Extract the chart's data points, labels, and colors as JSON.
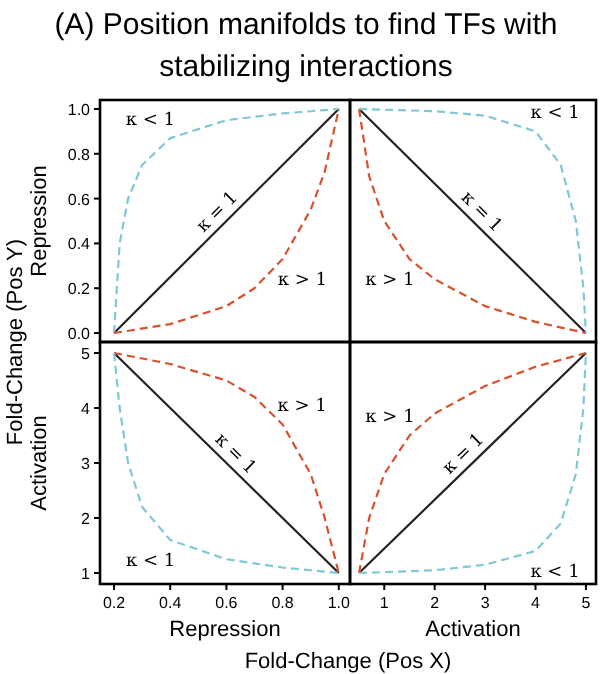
{
  "chart_data": [
    {
      "type": "line",
      "title": "(A) Position manifolds to find TFs with stabilizing interactions",
      "ylabel": "Repression",
      "xlim": [
        0.15,
        1.04
      ],
      "ylim": [
        -0.04,
        1.04
      ],
      "yticks": [
        {
          "value": 0,
          "label": "0.0"
        },
        0.2,
        0.4,
        0.6,
        0.8,
        {
          "value": 1,
          "label": "1.0"
        }
      ],
      "tick_labels": "y",
      "grid": false,
      "series": [
        {
          "color": "#222222",
          "line_style": "solid",
          "x": [
            0.2,
            1
          ],
          "values": [
            0,
            1
          ]
        },
        {
          "color": "#7ec8d8",
          "line_style": "dashed",
          "x": [
            0.2,
            0.22,
            0.25,
            0.3,
            0.4,
            0.6,
            0.8,
            1
          ],
          "values": [
            0,
            0.4,
            0.6,
            0.75,
            0.87,
            0.95,
            0.98,
            1
          ]
        },
        {
          "color": "#d9512c",
          "line_style": "dashed",
          "x": [
            0.2,
            0.4,
            0.6,
            0.7,
            0.8,
            0.9,
            0.95,
            1
          ],
          "values": [
            0,
            0.04,
            0.12,
            0.2,
            0.33,
            0.55,
            0.72,
            1
          ]
        }
      ],
      "annotations": [
        "Fold-Change (Pos Y)",
        {
          "text": "κ < 1",
          "x": 0.4,
          "y": 0.87
        },
        {
          "text": "κ = 1",
          "x": 0.6,
          "y": 0.5
        },
        {
          "text": "κ > 1",
          "x": 0.8,
          "y": 0.33
        }
      ]
    },
    {
      "type": "line",
      "xlim": [
        0.32,
        5.2
      ],
      "ylim": [
        -0.04,
        1.04
      ],
      "tick_labels": false,
      "grid": false,
      "series": [
        {
          "color": "#222222",
          "line_style": "solid",
          "x": [
            0.5,
            5
          ],
          "values": [
            1,
            0
          ]
        },
        {
          "color": "#d9512c",
          "line_style": "dashed",
          "x": [
            0.5,
            0.7,
            1,
            1.5,
            2,
            3,
            4,
            5
          ],
          "values": [
            1,
            0.7,
            0.5,
            0.33,
            0.24,
            0.12,
            0.05,
            0
          ]
        },
        {
          "color": "#7ec8d8",
          "line_style": "dashed",
          "x": [
            0.5,
            2,
            3,
            4,
            4.5,
            4.8,
            4.95,
            5
          ],
          "values": [
            1,
            0.99,
            0.97,
            0.9,
            0.75,
            0.5,
            0.2,
            0
          ]
        }
      ],
      "annotations": [
        {
          "text": "κ < 1",
          "x": 4,
          "y": 0.9
        },
        {
          "text": "κ = 1",
          "x": 2.75,
          "y": 0.5
        },
        {
          "text": "κ > 1",
          "x": 1.5,
          "y": 0.33
        }
      ]
    },
    {
      "type": "line",
      "xlabel": "Repression",
      "ylabel": "Activation",
      "xlim": [
        0.15,
        1.04
      ],
      "ylim": [
        0.8,
        5.2
      ],
      "xticks": [
        0.2,
        0.4,
        0.6,
        0.8,
        {
          "value": 1,
          "label": "1.0"
        }
      ],
      "yticks": [
        1,
        2,
        3,
        4,
        5
      ],
      "grid": false,
      "series": [
        {
          "color": "#222222",
          "line_style": "solid",
          "x": [
            0.2,
            1
          ],
          "values": [
            5,
            1
          ]
        },
        {
          "color": "#d9512c",
          "line_style": "dashed",
          "x": [
            0.2,
            0.4,
            0.6,
            0.7,
            0.8,
            0.9,
            0.95,
            1
          ],
          "values": [
            5,
            4.8,
            4.5,
            4.2,
            3.7,
            2.8,
            2,
            1
          ]
        },
        {
          "color": "#7ec8d8",
          "line_style": "dashed",
          "x": [
            0.2,
            0.22,
            0.25,
            0.3,
            0.4,
            0.6,
            0.8,
            1
          ],
          "values": [
            5,
            4,
            3,
            2.2,
            1.6,
            1.25,
            1.1,
            1
          ]
        }
      ],
      "annotations": [
        {
          "text": "κ > 1",
          "x": 0.8,
          "y": 3.7
        },
        {
          "text": "κ = 1",
          "x": 0.6,
          "y": 3
        },
        {
          "text": "κ < 1",
          "x": 0.4,
          "y": 1.6
        }
      ]
    },
    {
      "type": "line",
      "xlabel": "Activation",
      "xlim": [
        0.32,
        5.2
      ],
      "ylim": [
        0.8,
        5.2
      ],
      "xticks": [
        1,
        2,
        3,
        4,
        5
      ],
      "tick_labels": "x",
      "grid": false,
      "series": [
        {
          "color": "#222222",
          "line_style": "solid",
          "x": [
            0.5,
            5
          ],
          "values": [
            1,
            5
          ]
        },
        {
          "color": "#d9512c",
          "line_style": "dashed",
          "x": [
            0.5,
            0.7,
            1,
            1.5,
            2,
            3,
            4,
            5
          ],
          "values": [
            1,
            2,
            2.8,
            3.5,
            3.9,
            4.4,
            4.75,
            5
          ]
        },
        {
          "color": "#7ec8d8",
          "line_style": "dashed",
          "x": [
            0.5,
            2,
            3,
            4,
            4.5,
            4.8,
            4.95,
            5
          ],
          "values": [
            1,
            1.05,
            1.15,
            1.4,
            1.9,
            2.8,
            4,
            5
          ]
        }
      ],
      "annotations": [
        "Fold-Change (Pos X)",
        {
          "text": "κ > 1",
          "x": 1.5,
          "y": 3.5
        },
        {
          "text": "κ = 1",
          "x": 2.75,
          "y": 3
        },
        {
          "text": "κ < 1",
          "x": 4,
          "y": 1.4
        }
      ]
    }
  ]
}
